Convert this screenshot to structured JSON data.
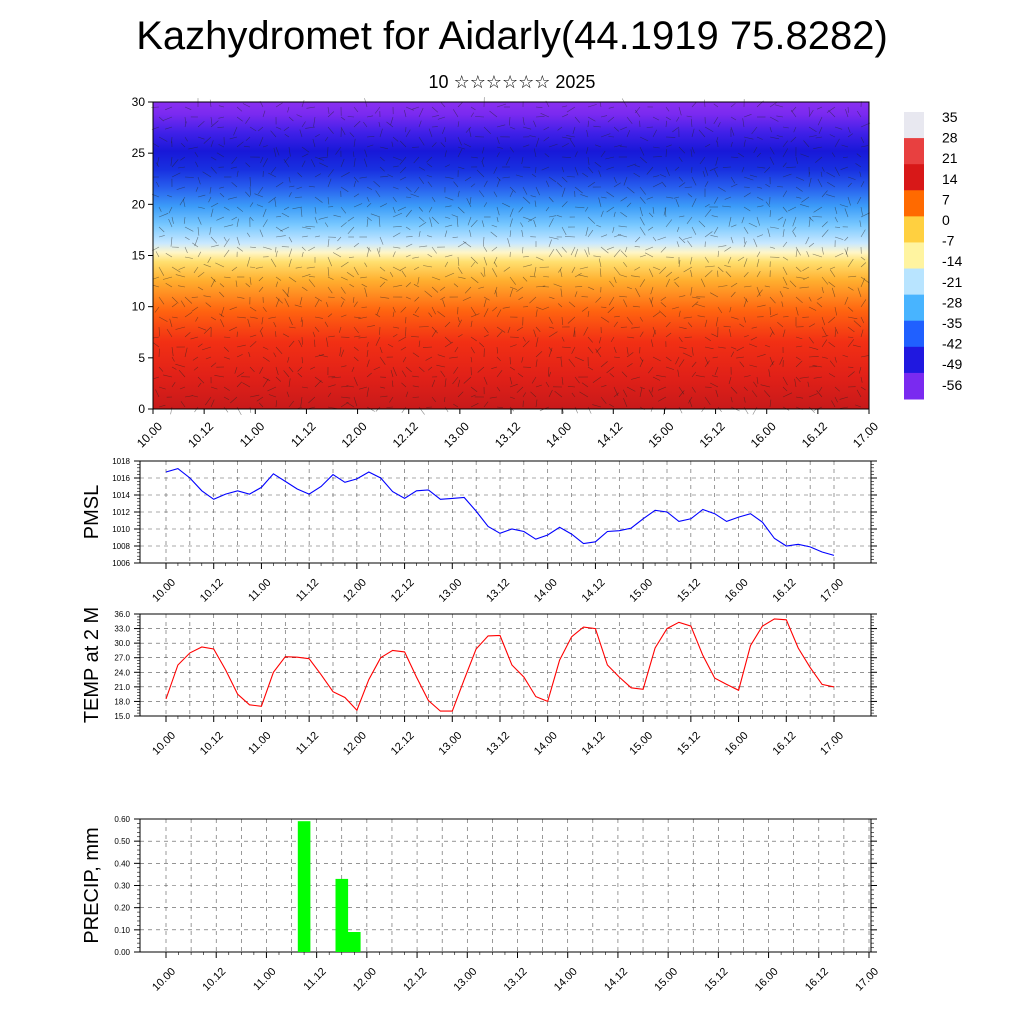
{
  "header": {
    "title": "Kazhydromet for Aidarly(44.1919 75.8282)",
    "subtitle": "10 ☆☆☆☆☆☆ 2025"
  },
  "x_tick_labels": [
    "10.00",
    "10.12",
    "11.00",
    "11.12",
    "12.00",
    "12.12",
    "13.00",
    "13.12",
    "14.00",
    "14.12",
    "15.00",
    "15.12",
    "16.00",
    "16.12",
    "17.00"
  ],
  "colorbar": {
    "labels": [
      "35",
      "28",
      "21",
      "14",
      "7",
      "0",
      "-7",
      "-14",
      "-21",
      "-28",
      "-35",
      "-42",
      "-49",
      "-56"
    ],
    "colors": [
      "#e8e8f0",
      "#e84040",
      "#d81818",
      "#ff6a00",
      "#ffd040",
      "#fff4a0",
      "#b8e4ff",
      "#48b4ff",
      "#2060ff",
      "#2018e0",
      "#7a2af0"
    ]
  },
  "chart_data": [
    {
      "type": "heatmap",
      "title": "",
      "ylim": [
        0,
        30
      ],
      "y_ticks": [
        0,
        5,
        10,
        15,
        20,
        25,
        30
      ],
      "x_ticks": [
        "10.00",
        "10.12",
        "11.00",
        "11.12",
        "12.00",
        "12.12",
        "13.00",
        "13.12",
        "14.00",
        "14.12",
        "15.00",
        "15.12",
        "16.00",
        "16.12",
        "17.00"
      ],
      "value_range": [
        -56,
        35
      ],
      "overlay": "wind vectors"
    },
    {
      "type": "line",
      "ylabel": "PMSL",
      "ylim": [
        1006,
        1018
      ],
      "y_ticks": [
        1006,
        1008,
        1010,
        1012,
        1014,
        1016,
        1018
      ],
      "color": "#0000ff",
      "x": [
        0,
        3,
        6,
        9,
        12,
        15,
        18,
        21,
        24,
        27,
        30,
        33,
        36,
        39,
        42,
        45,
        48,
        51,
        54,
        57,
        60,
        63,
        66,
        69,
        72,
        75,
        78,
        81,
        84,
        87,
        90,
        93,
        96,
        99,
        102,
        105,
        108,
        111,
        114,
        117,
        120,
        123,
        126,
        129,
        132,
        135,
        138,
        141,
        144,
        147,
        150,
        153,
        156,
        159,
        162,
        165,
        168
      ],
      "values": [
        1016.7,
        1017.1,
        1016.0,
        1014.5,
        1013.5,
        1014.1,
        1014.5,
        1014.1,
        1014.9,
        1016.5,
        1015.6,
        1014.7,
        1014.1,
        1015.0,
        1016.4,
        1015.5,
        1015.9,
        1016.7,
        1016.0,
        1014.4,
        1013.6,
        1014.5,
        1014.6,
        1013.5,
        1013.6,
        1013.7,
        1012.1,
        1010.3,
        1009.5,
        1010.0,
        1009.7,
        1008.8,
        1009.3,
        1010.2,
        1009.4,
        1008.3,
        1008.5,
        1009.7,
        1009.8,
        1010.1,
        1011.2,
        1012.2,
        1012.0,
        1010.9,
        1011.2,
        1012.3,
        1011.8,
        1010.9,
        1011.4,
        1011.8,
        1010.8,
        1008.9,
        1008.0,
        1008.2,
        1007.9,
        1007.3,
        1006.9
      ]
    },
    {
      "type": "line",
      "ylabel": "TEMP at 2 M",
      "ylim": [
        15,
        36
      ],
      "y_ticks": [
        "15.0",
        "18.0",
        "21.0",
        "24.0",
        "27.0",
        "30.0",
        "33.0",
        "36.0"
      ],
      "color": "#ff0000",
      "x": [
        0,
        3,
        6,
        9,
        12,
        15,
        18,
        21,
        24,
        27,
        30,
        33,
        36,
        39,
        42,
        45,
        48,
        51,
        54,
        57,
        60,
        63,
        66,
        69,
        72,
        75,
        78,
        81,
        84,
        87,
        90,
        93,
        96,
        99,
        102,
        105,
        108,
        111,
        114,
        117,
        120,
        123,
        126,
        129,
        132,
        135,
        138,
        141,
        144,
        147,
        150,
        153,
        156,
        159,
        162,
        165,
        168
      ],
      "values": [
        18.5,
        25.5,
        28.0,
        29.2,
        28.8,
        24.5,
        19.5,
        17.3,
        17.0,
        24.0,
        27.2,
        27.1,
        26.8,
        23.5,
        20.0,
        18.8,
        16.2,
        22.5,
        27.0,
        28.5,
        28.2,
        23.0,
        18.2,
        16.0,
        16.0,
        22.5,
        28.8,
        31.5,
        31.6,
        25.5,
        23.0,
        19.0,
        18.0,
        26.5,
        31.3,
        33.3,
        33.0,
        25.5,
        23.0,
        20.8,
        20.5,
        29.0,
        33.0,
        34.3,
        33.5,
        27.5,
        22.8,
        21.5,
        20.3,
        29.5,
        33.5,
        35.0,
        34.8,
        29.0,
        25.0,
        21.5,
        21.0
      ]
    },
    {
      "type": "bar",
      "ylabel": "PRECIP, mm",
      "ylim": [
        0,
        0.6
      ],
      "y_ticks": [
        "0.00",
        "0.10",
        "0.20",
        "0.30",
        "0.40",
        "0.50",
        "0.60"
      ],
      "color": "#00ff00",
      "x": [
        33,
        42,
        45
      ],
      "values": [
        0.59,
        0.33,
        0.09
      ]
    }
  ]
}
